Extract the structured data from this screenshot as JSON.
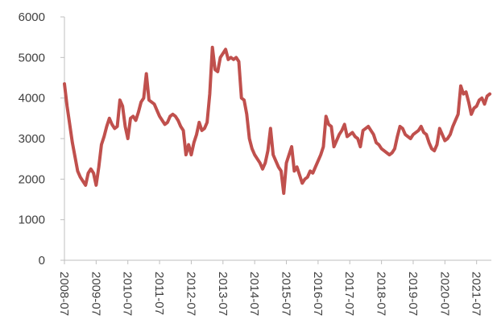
{
  "chart_data": {
    "type": "line",
    "x": [
      "2008-07",
      "2008-08",
      "2008-09",
      "2008-10",
      "2008-11",
      "2008-12",
      "2009-01",
      "2009-02",
      "2009-03",
      "2009-04",
      "2009-05",
      "2009-06",
      "2009-07",
      "2009-08",
      "2009-09",
      "2009-10",
      "2009-11",
      "2009-12",
      "2010-01",
      "2010-02",
      "2010-03",
      "2010-04",
      "2010-05",
      "2010-06",
      "2010-07",
      "2010-08",
      "2010-09",
      "2010-10",
      "2010-11",
      "2010-12",
      "2011-01",
      "2011-02",
      "2011-03",
      "2011-04",
      "2011-05",
      "2011-06",
      "2011-07",
      "2011-08",
      "2011-09",
      "2011-10",
      "2011-11",
      "2011-12",
      "2012-01",
      "2012-02",
      "2012-03",
      "2012-04",
      "2012-05",
      "2012-06",
      "2012-07",
      "2012-08",
      "2012-09",
      "2012-10",
      "2012-11",
      "2012-12",
      "2013-01",
      "2013-02",
      "2013-03",
      "2013-04",
      "2013-05",
      "2013-06",
      "2013-07",
      "2013-08",
      "2013-09",
      "2013-10",
      "2013-11",
      "2013-12",
      "2014-01",
      "2014-02",
      "2014-03",
      "2014-04",
      "2014-05",
      "2014-06",
      "2014-07",
      "2014-08",
      "2014-09",
      "2014-10",
      "2014-11",
      "2014-12",
      "2015-01",
      "2015-02",
      "2015-03",
      "2015-04",
      "2015-05",
      "2015-06",
      "2015-07",
      "2015-08",
      "2015-09",
      "2015-10",
      "2015-11",
      "2015-12",
      "2016-01",
      "2016-02",
      "2016-03",
      "2016-04",
      "2016-05",
      "2016-06",
      "2016-07",
      "2016-08",
      "2016-09",
      "2016-10",
      "2016-11",
      "2016-12",
      "2017-01",
      "2017-02",
      "2017-03",
      "2017-04",
      "2017-05",
      "2017-06",
      "2017-07",
      "2017-08",
      "2017-09",
      "2017-10",
      "2017-11",
      "2017-12",
      "2018-01",
      "2018-02",
      "2018-03",
      "2018-04",
      "2018-05",
      "2018-06",
      "2018-07",
      "2018-08",
      "2018-09",
      "2018-10",
      "2018-11",
      "2018-12",
      "2019-01",
      "2019-02",
      "2019-03",
      "2019-04",
      "2019-05",
      "2019-06",
      "2019-07",
      "2019-08",
      "2019-09",
      "2019-10",
      "2019-11",
      "2019-12",
      "2020-01",
      "2020-02",
      "2020-03",
      "2020-04",
      "2020-05",
      "2020-06",
      "2020-07",
      "2020-08",
      "2020-09",
      "2020-10",
      "2020-11",
      "2020-12",
      "2021-01",
      "2021-02",
      "2021-03",
      "2021-04",
      "2021-05",
      "2021-06",
      "2021-07",
      "2021-08",
      "2021-09",
      "2021-10",
      "2021-11",
      "2021-12"
    ],
    "series": [
      {
        "color": "#c0504d",
        "values": [
          4350,
          3800,
          3350,
          2900,
          2550,
          2200,
          2050,
          1950,
          1850,
          2150,
          2250,
          2150,
          1850,
          2300,
          2850,
          3050,
          3300,
          3500,
          3350,
          3250,
          3300,
          3950,
          3800,
          3300,
          3000,
          3500,
          3550,
          3450,
          3650,
          3900,
          4000,
          4600,
          3950,
          3900,
          3850,
          3700,
          3550,
          3450,
          3350,
          3400,
          3550,
          3600,
          3550,
          3450,
          3300,
          3200,
          2600,
          2850,
          2600,
          2900,
          3100,
          3400,
          3200,
          3250,
          3400,
          4100,
          5250,
          4700,
          4650,
          5000,
          5100,
          5200,
          4950,
          5000,
          4950,
          5000,
          4900,
          4000,
          3950,
          3600,
          3000,
          2750,
          2600,
          2500,
          2400,
          2250,
          2400,
          2700,
          3250,
          2600,
          2450,
          2300,
          2200,
          1650,
          2400,
          2600,
          2800,
          2200,
          2300,
          2100,
          1900,
          2000,
          2050,
          2200,
          2150,
          2300,
          2450,
          2600,
          2800,
          3550,
          3350,
          3300,
          2800,
          2950,
          3100,
          3200,
          3350,
          3050,
          3100,
          3150,
          3050,
          3000,
          2800,
          3200,
          3250,
          3300,
          3200,
          3100,
          2900,
          2850,
          2750,
          2700,
          2650,
          2600,
          2650,
          2750,
          3050,
          3300,
          3250,
          3100,
          3050,
          3000,
          3100,
          3150,
          3200,
          3300,
          3150,
          3100,
          2900,
          2750,
          2700,
          2850,
          3250,
          3100,
          2950,
          3000,
          3100,
          3300,
          3450,
          3600,
          4300,
          4100,
          4150,
          3900,
          3600,
          3750,
          3800,
          3950,
          4000,
          3850,
          4050,
          4100
        ]
      }
    ],
    "xticks": [
      "2008-07",
      "2009-07",
      "2010-07",
      "2011-07",
      "2012-07",
      "2013-07",
      "2014-07",
      "2015-07",
      "2016-07",
      "2017-07",
      "2018-07",
      "2019-07",
      "2020-07",
      "2021-07"
    ],
    "ylim": [
      0,
      6000
    ],
    "yticks": [
      0,
      1000,
      2000,
      3000,
      4000,
      5000,
      6000
    ],
    "grid": false
  }
}
